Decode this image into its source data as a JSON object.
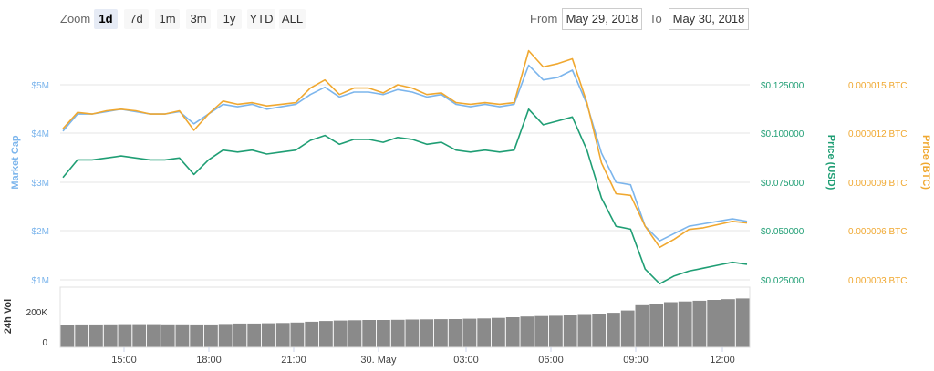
{
  "toolbar": {
    "zoom_label": "Zoom",
    "zoom_buttons": [
      "1d",
      "7d",
      "1m",
      "3m",
      "1y",
      "YTD",
      "ALL"
    ],
    "active_zoom": "1d",
    "from_label": "From",
    "from_value": "May 29, 2018",
    "to_label": "To",
    "to_value": "May 30, 2018"
  },
  "colors": {
    "market_cap": "#7cb5ec",
    "price_usd": "#1f9e74",
    "price_btc": "#f0a830",
    "volume": "#8a8a8a",
    "grid": "#e6e6e6"
  },
  "chart_data": [
    {
      "type": "line",
      "title": "",
      "x": [
        "13:00",
        "13:30",
        "14:00",
        "14:30",
        "15:00",
        "15:30",
        "16:00",
        "16:30",
        "17:00",
        "17:30",
        "18:00",
        "18:30",
        "19:00",
        "19:30",
        "20:00",
        "20:30",
        "21:00",
        "21:30",
        "22:00",
        "22:30",
        "23:00",
        "23:30",
        "00:00",
        "00:30",
        "01:00",
        "01:30",
        "02:00",
        "02:30",
        "03:00",
        "03:30",
        "04:00",
        "04:30",
        "05:00",
        "05:30",
        "06:00",
        "06:30",
        "07:00",
        "07:30",
        "08:00",
        "08:30",
        "09:00",
        "09:30",
        "10:00",
        "10:30",
        "11:00",
        "11:30",
        "12:00",
        "12:30"
      ],
      "x_ticks": [
        "15:00",
        "18:00",
        "21:00",
        "30. May",
        "03:00",
        "06:00",
        "09:00",
        "12:00"
      ],
      "y_axes": [
        {
          "id": "market_cap",
          "title": "Market Cap",
          "position": "left",
          "ticks": [
            "$1M",
            "$2M",
            "$3M",
            "$4M",
            "$5M"
          ],
          "range": [
            1,
            5
          ]
        },
        {
          "id": "price_usd",
          "title": "Price (USD)",
          "position": "right",
          "ticks": [
            "$0.025000",
            "$0.050000",
            "$0.075000",
            "$0.100000",
            "$0.125000"
          ],
          "range": [
            0.025,
            0.125
          ]
        },
        {
          "id": "price_btc",
          "title": "Price (BTC)",
          "position": "right",
          "ticks": [
            "0.000003 BTC",
            "0.000006 BTC",
            "0.000009 BTC",
            "0.000012 BTC",
            "0.000015 BTC"
          ],
          "range": [
            3e-06,
            1.5e-05
          ]
        }
      ],
      "series": [
        {
          "id": "market_cap",
          "axis": "market_cap",
          "values": [
            4.05,
            4.4,
            4.4,
            4.45,
            4.5,
            4.45,
            4.4,
            4.4,
            4.45,
            4.2,
            4.4,
            4.6,
            4.55,
            4.6,
            4.5,
            4.55,
            4.6,
            4.8,
            4.95,
            4.75,
            4.85,
            4.85,
            4.8,
            4.9,
            4.85,
            4.75,
            4.8,
            4.6,
            4.55,
            4.6,
            4.55,
            4.6,
            5.4,
            5.1,
            5.15,
            5.3,
            4.6,
            3.6,
            3.0,
            2.95,
            2.1,
            1.8,
            1.95,
            2.1,
            2.15,
            2.2,
            2.25,
            2.2
          ]
        },
        {
          "id": "price_usd",
          "axis": "price_usd",
          "values": [
            0.0775,
            0.0865,
            0.0865,
            0.0875,
            0.0885,
            0.0875,
            0.0865,
            0.0865,
            0.0875,
            0.079,
            0.0865,
            0.0915,
            0.0905,
            0.0915,
            0.0895,
            0.0905,
            0.0915,
            0.0965,
            0.099,
            0.0945,
            0.097,
            0.097,
            0.0955,
            0.098,
            0.097,
            0.0945,
            0.0955,
            0.0915,
            0.0905,
            0.0915,
            0.0905,
            0.0915,
            0.1125,
            0.1045,
            0.1065,
            0.1085,
            0.0915,
            0.067,
            0.0525,
            0.051,
            0.0305,
            0.023,
            0.027,
            0.0295,
            0.031,
            0.0325,
            0.034,
            0.033
          ]
        },
        {
          "id": "price_btc",
          "axis": "price_btc",
          "values": [
            1.23e-05,
            1.33e-05,
            1.32e-05,
            1.34e-05,
            1.35e-05,
            1.34e-05,
            1.32e-05,
            1.32e-05,
            1.34e-05,
            1.22e-05,
            1.32e-05,
            1.4e-05,
            1.38e-05,
            1.39e-05,
            1.37e-05,
            1.38e-05,
            1.39e-05,
            1.48e-05,
            1.53e-05,
            1.44e-05,
            1.48e-05,
            1.48e-05,
            1.45e-05,
            1.5e-05,
            1.48e-05,
            1.44e-05,
            1.45e-05,
            1.39e-05,
            1.38e-05,
            1.39e-05,
            1.38e-05,
            1.39e-05,
            1.71e-05,
            1.61e-05,
            1.63e-05,
            1.66e-05,
            1.39e-05,
            1.02e-05,
            8.3e-06,
            8.2e-06,
            6.3e-06,
            5e-06,
            5.5e-06,
            6.1e-06,
            6.2e-06,
            6.4e-06,
            6.6e-06,
            6.5e-06
          ]
        }
      ]
    },
    {
      "type": "bar",
      "ylabel": "24h Vol",
      "y_ticks": [
        "0",
        "200K"
      ],
      "range": [
        0,
        400000
      ],
      "values": [
        150000,
        152000,
        152000,
        153000,
        154000,
        154000,
        154000,
        153000,
        153000,
        152000,
        152000,
        155000,
        158000,
        158000,
        160000,
        162000,
        165000,
        170000,
        175000,
        178000,
        180000,
        182000,
        182000,
        183000,
        185000,
        186000,
        187000,
        188000,
        190000,
        192000,
        196000,
        200000,
        205000,
        208000,
        210000,
        212000,
        215000,
        220000,
        230000,
        245000,
        280000,
        290000,
        300000,
        305000,
        310000,
        315000,
        320000,
        325000
      ]
    }
  ]
}
